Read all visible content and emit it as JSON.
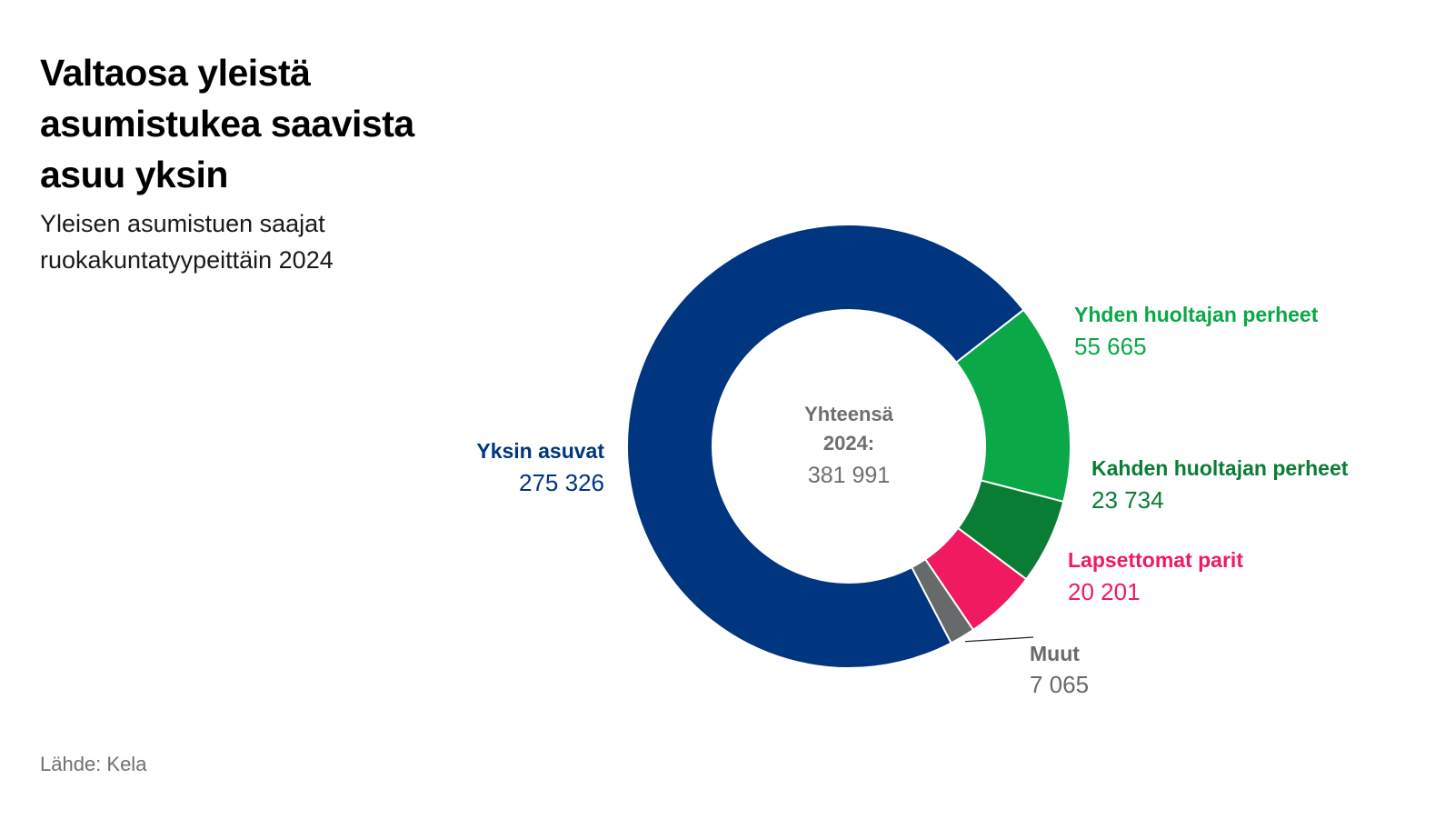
{
  "title": "Valtaosa yleistä asumistukea saavista asuu yksin",
  "subtitle": "Yleisen asumistuen saajat ruokakuntatyypeittäin 2024",
  "source": "Lähde: Kela",
  "chart_data": {
    "type": "pie",
    "variant": "donut",
    "title": "Valtaosa yleistä asumistukea saavista asuu yksin",
    "subtitle": "Yleisen asumistuen saajat ruokakuntatyypeittäin 2024",
    "center_label": [
      "Yhteensä",
      "2024:"
    ],
    "center_value": "381 991",
    "total": 381991,
    "slices": [
      {
        "name": "Yhden huoltajan perheet",
        "value": 55665,
        "value_label": "55 665",
        "color": "#0aa847"
      },
      {
        "name": "Kahden huoltajan perheet",
        "value": 23734,
        "value_label": "23 734",
        "color": "#0a7d34"
      },
      {
        "name": "Lapsettomat parit",
        "value": 20201,
        "value_label": "20 201",
        "color": "#ef1a5f"
      },
      {
        "name": "Muut",
        "value": 7065,
        "value_label": "7 065",
        "color": "#666a6b"
      },
      {
        "name": "Yksin asuvat",
        "value": 275326,
        "value_label": "275 326",
        "color": "#003580"
      }
    ]
  }
}
